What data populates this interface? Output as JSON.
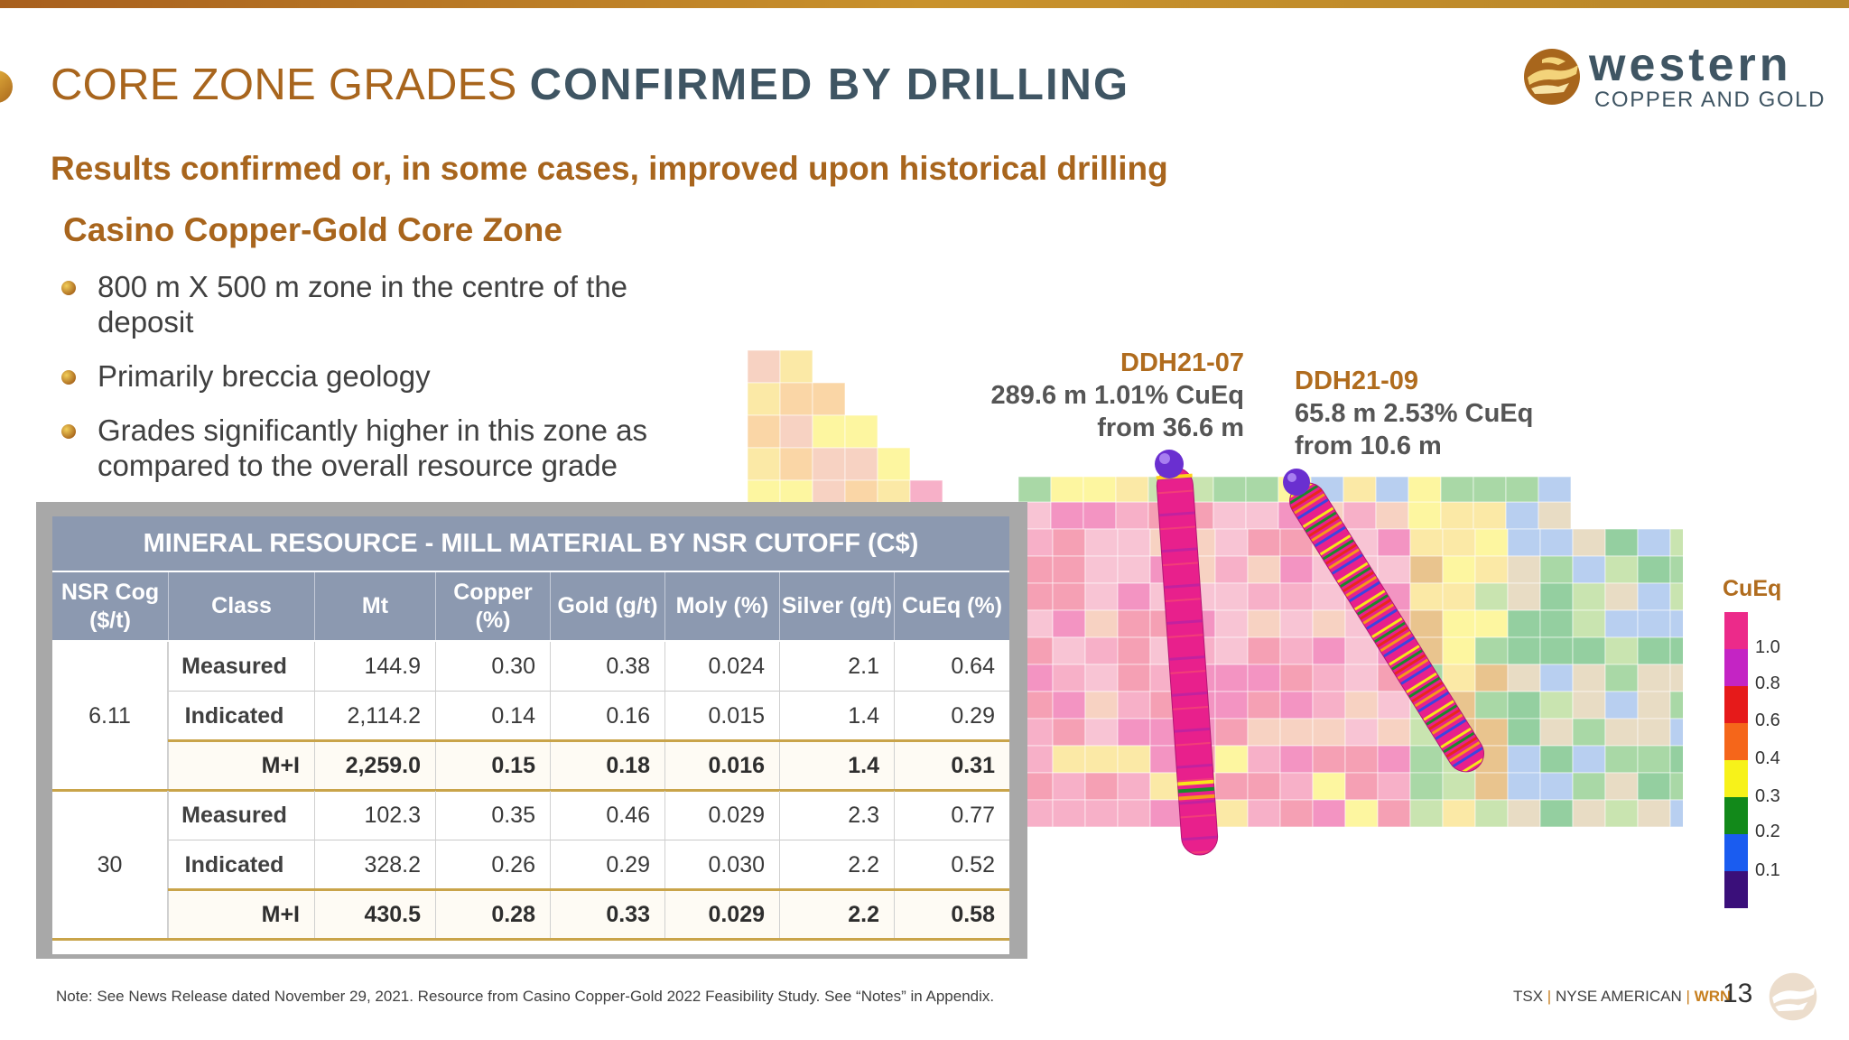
{
  "header": {
    "title_part1": "CORE ZONE GRADES",
    "title_part2": "CONFIRMED BY DRILLING",
    "logo_word": "western",
    "logo_sub": "COPPER AND GOLD"
  },
  "subtitle": "Results confirmed or, in some cases, improved upon historical drilling",
  "section": {
    "heading": "Casino Copper-Gold Core Zone",
    "bullets": [
      "800 m X 500 m zone in the centre of the deposit",
      "Primarily breccia geology",
      "Grades significantly higher in this zone as compared to the overall resource grade"
    ]
  },
  "table": {
    "title": "MINERAL RESOURCE - MILL MATERIAL BY NSR CUTOFF (C$)",
    "headers": [
      "NSR Cog ($/t)",
      "Class",
      "Mt",
      "Copper (%)",
      "Gold (g/t)",
      "Moly (%)",
      "Silver (g/t)",
      "CuEq (%)"
    ],
    "groups": [
      {
        "nsr": "6.11",
        "rows": [
          {
            "class": "Measured",
            "mt": "144.9",
            "copper": "0.30",
            "gold": "0.38",
            "moly": "0.024",
            "silver": "2.1",
            "cueq": "0.64"
          },
          {
            "class": "Indicated",
            "mt": "2,114.2",
            "copper": "0.14",
            "gold": "0.16",
            "moly": "0.015",
            "silver": "1.4",
            "cueq": "0.29"
          },
          {
            "class": "M+I",
            "mt": "2,259.0",
            "copper": "0.15",
            "gold": "0.18",
            "moly": "0.016",
            "silver": "1.4",
            "cueq": "0.31"
          }
        ]
      },
      {
        "nsr": "30",
        "rows": [
          {
            "class": "Measured",
            "mt": "102.3",
            "copper": "0.35",
            "gold": "0.46",
            "moly": "0.029",
            "silver": "2.3",
            "cueq": "0.77"
          },
          {
            "class": "Indicated",
            "mt": "328.2",
            "copper": "0.26",
            "gold": "0.29",
            "moly": "0.030",
            "silver": "2.2",
            "cueq": "0.52"
          },
          {
            "class": "M+I",
            "mt": "430.5",
            "copper": "0.28",
            "gold": "0.33",
            "moly": "0.029",
            "silver": "2.2",
            "cueq": "0.58"
          }
        ]
      }
    ]
  },
  "drillholes": [
    {
      "name": "DDH21-07",
      "line1": "289.6 m 1.01% CuEq",
      "line2": "from 36.6 m"
    },
    {
      "name": "DDH21-09",
      "line1": "65.8 m 2.53% CuEq",
      "line2": "from 10.6 m"
    }
  ],
  "legend": {
    "title": "CuEq",
    "labels": [
      "1.0",
      "0.8",
      "0.6",
      "0.4",
      "0.3",
      "0.2",
      "0.1"
    ],
    "colors": [
      "#ec2a8a",
      "#c424c4",
      "#e61a1a",
      "#f5661a",
      "#f7f21a",
      "#12891a",
      "#1a5cf0",
      "#3a0f7a"
    ]
  },
  "footer": {
    "note": "Note: See News Release dated November 29, 2021.  Resource from Casino Copper-Gold 2022 Feasibility Study.  See “Notes” in Appendix.",
    "exchange1": "TSX",
    "exchange2": "NYSE AMERICAN",
    "ticker": "WRN",
    "page": "13"
  }
}
